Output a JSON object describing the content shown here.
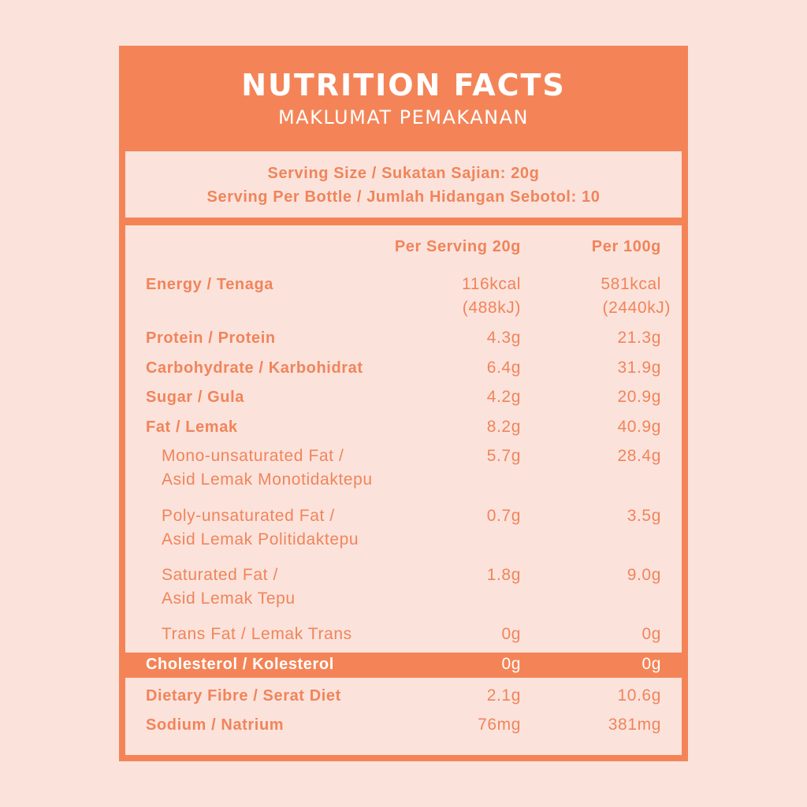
{
  "header": {
    "title": "NUTRITION FACTS",
    "subtitle": "MAKLUMAT PEMAKANAN"
  },
  "serving": {
    "size": "Serving Size / Sukatan Sajian: 20g",
    "per_bottle": "Serving Per Bottle / Jumlah Hidangan Sebotol: 10"
  },
  "columns": {
    "per_serving": "Per Serving 20g",
    "per_100g": "Per 100g"
  },
  "rows": {
    "energy": {
      "label": "Energy / Tenaga",
      "serving_kcal": "116kcal",
      "serving_kj": "(488kJ)",
      "per100_kcal": "581kcal",
      "per100_kj": "(2440kJ)"
    },
    "protein": {
      "label": "Protein / Protein",
      "serving": "4.3g",
      "per100": "21.3g"
    },
    "carbohydrate": {
      "label": "Carbohydrate / Karbohidrat",
      "serving": "6.4g",
      "per100": "31.9g"
    },
    "sugar": {
      "label": "Sugar / Gula",
      "serving": "4.2g",
      "per100": "20.9g"
    },
    "fat": {
      "label": "Fat / Lemak",
      "serving": "8.2g",
      "per100": "40.9g"
    },
    "mono": {
      "label_line1": "Mono-unsaturated Fat /",
      "label_line2": "Asid Lemak Monotidaktepu",
      "serving": "5.7g",
      "per100": "28.4g"
    },
    "poly": {
      "label_line1": "Poly-unsaturated Fat /",
      "label_line2": "Asid Lemak Politidaktepu",
      "serving": "0.7g",
      "per100": "3.5g"
    },
    "saturated": {
      "label_line1": "Saturated Fat /",
      "label_line2": "Asid Lemak Tepu",
      "serving": "1.8g",
      "per100": "9.0g"
    },
    "trans": {
      "label": "Trans Fat / Lemak Trans",
      "serving": "0g",
      "per100": "0g"
    },
    "cholesterol": {
      "label": "Cholesterol / Kolesterol",
      "serving": "0g",
      "per100": "0g"
    },
    "fibre": {
      "label": "Dietary Fibre / Serat Diet",
      "serving": "2.1g",
      "per100": "10.6g"
    },
    "sodium": {
      "label": "Sodium / Natrium",
      "serving": "76mg",
      "per100": "381mg"
    }
  },
  "colors": {
    "accent": "#f48457",
    "background": "#fbe3dc",
    "text": "#f1845a"
  }
}
